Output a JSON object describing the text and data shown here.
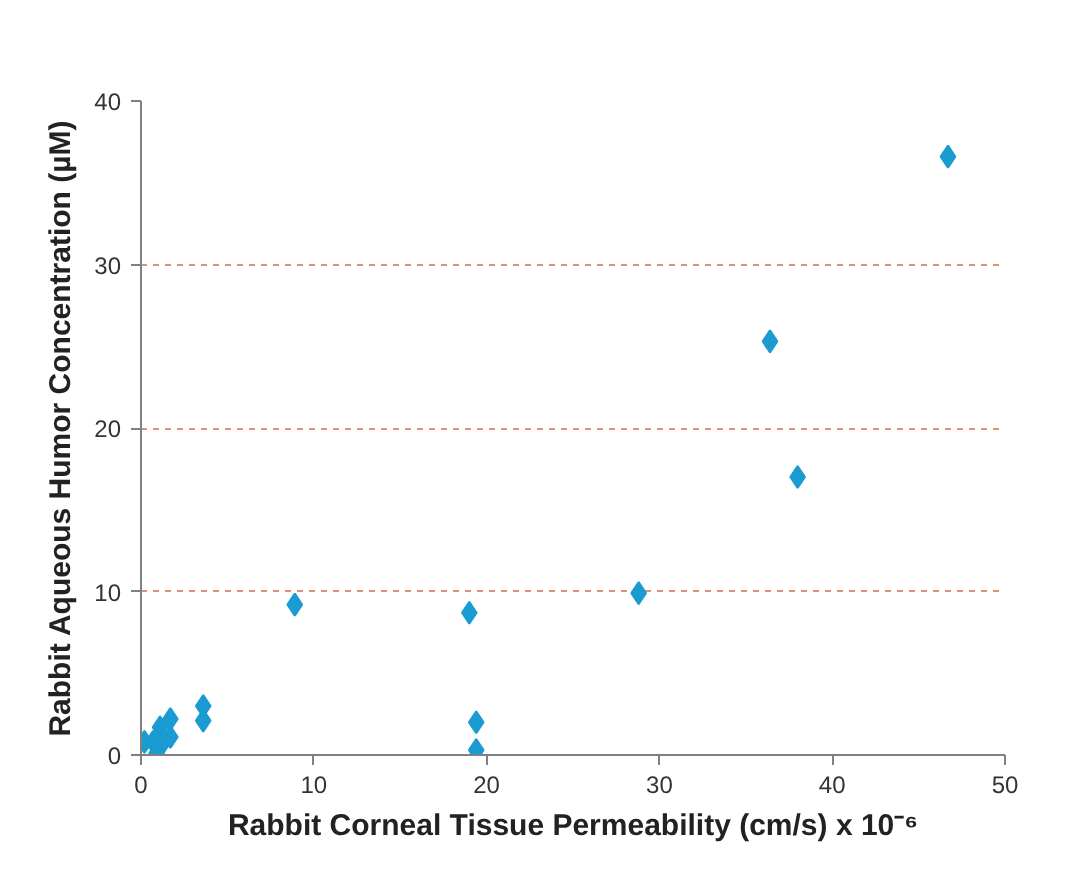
{
  "chart_data": {
    "type": "scatter",
    "xlabel": "Rabbit Corneal Tissue Permeability (cm/s) x 10⁻⁶",
    "ylabel": "Rabbit Aqueous Humor Concentration (µM)",
    "x": [
      46.7,
      36.4,
      38.0,
      28.8,
      8.9,
      19.0,
      19.4,
      19.4,
      3.6,
      3.6,
      1.7,
      1.7,
      1.1,
      0.2,
      0.7,
      1.3,
      0.9
    ],
    "values": [
      36.6,
      25.3,
      17.0,
      9.9,
      9.2,
      8.7,
      2.0,
      0.3,
      3.0,
      2.1,
      2.2,
      1.1,
      1.7,
      0.8,
      0.8,
      0.8,
      0.1
    ],
    "color": "#1a9bd2",
    "marker": "diamond",
    "xlim": [
      0,
      50
    ],
    "ylim": [
      0,
      40
    ],
    "xticks": [
      0,
      10,
      20,
      30,
      40,
      50
    ],
    "yticks": [
      0,
      10,
      20,
      30,
      40
    ],
    "grid": "y"
  }
}
